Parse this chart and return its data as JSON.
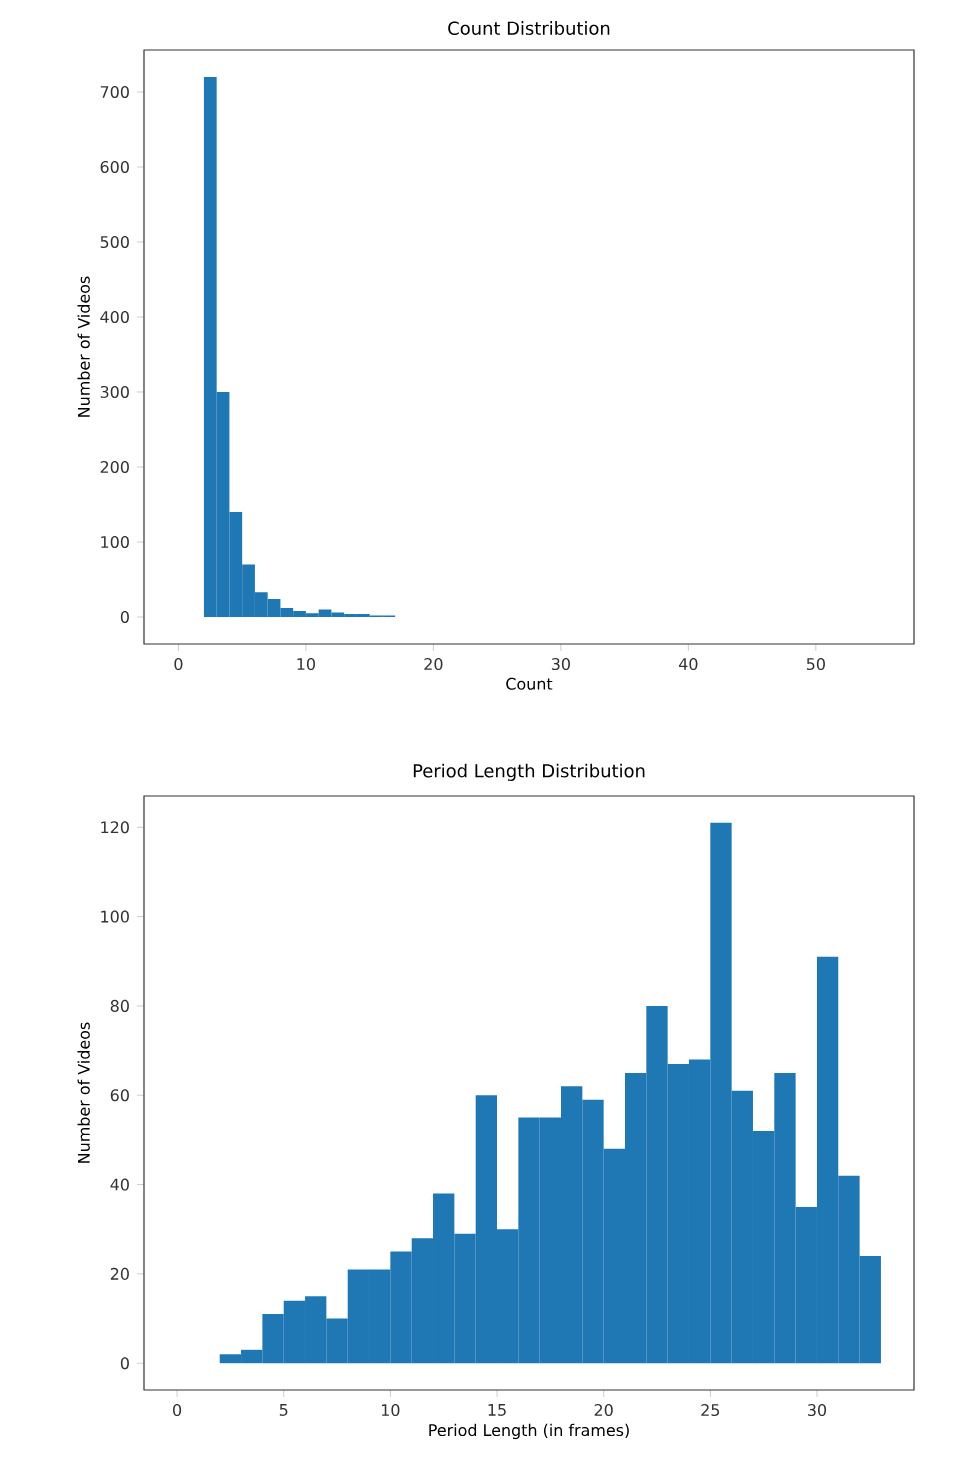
{
  "chart_data": [
    {
      "type": "histogram",
      "title": "Count Distribution",
      "xlabel": "Count",
      "ylabel": "Number of Videos",
      "color": "#1f77b4",
      "bins": [
        2,
        3,
        4,
        5,
        6,
        7,
        8,
        9,
        10,
        11,
        12,
        13,
        14,
        15,
        16,
        17
      ],
      "values": [
        720,
        300,
        140,
        70,
        33,
        24,
        12,
        8,
        5,
        10,
        6,
        4,
        4,
        2,
        2
      ],
      "xlim": [
        -2.7,
        57.7
      ],
      "ylim": [
        -36,
        756
      ],
      "xticks": [
        0,
        10,
        20,
        30,
        40,
        50
      ],
      "yticks": [
        0,
        100,
        200,
        300,
        400,
        500,
        600,
        700
      ]
    },
    {
      "type": "histogram",
      "title": "Period Length Distribution",
      "xlabel": "Period Length (in frames)",
      "ylabel": "Number of Videos",
      "color": "#1f77b4",
      "bins": [
        2,
        3,
        4,
        5,
        6,
        7,
        8,
        9,
        10,
        11,
        12,
        13,
        14,
        15,
        16,
        17,
        18,
        19,
        20,
        21,
        22,
        23,
        24,
        25,
        26,
        27,
        28,
        29,
        30,
        31,
        32,
        33
      ],
      "values": [
        2,
        3,
        11,
        14,
        15,
        10,
        21,
        21,
        25,
        28,
        38,
        29,
        60,
        30,
        55,
        55,
        62,
        59,
        48,
        65,
        80,
        67,
        68,
        121,
        61,
        52,
        65,
        35,
        91,
        42,
        24
      ],
      "xlim": [
        -1.55,
        34.55
      ],
      "ylim": [
        -6,
        127
      ],
      "xticks": [
        0,
        5,
        10,
        15,
        20,
        25,
        30
      ],
      "yticks": [
        0,
        20,
        40,
        60,
        80,
        100,
        120
      ]
    }
  ]
}
